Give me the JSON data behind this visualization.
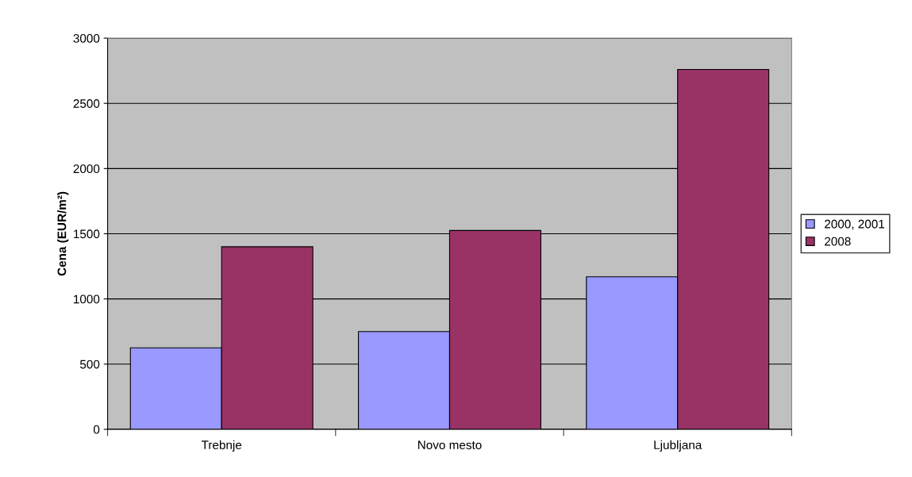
{
  "chart_data": {
    "type": "bar",
    "ylabel": "Cena (EUR/m²)",
    "categories": [
      "Trebnje",
      "Novo mesto",
      "Ljubljana"
    ],
    "series": [
      {
        "name": "2000, 2001",
        "color": "#9999ff",
        "values": [
          625,
          750,
          1170
        ]
      },
      {
        "name": "2008",
        "color": "#993366",
        "values": [
          1400,
          1525,
          2760
        ]
      }
    ],
    "ylim": [
      0,
      3000
    ],
    "yticks": [
      0,
      500,
      1000,
      1500,
      2000,
      2500,
      3000
    ],
    "grid": "y",
    "legend": "right"
  }
}
